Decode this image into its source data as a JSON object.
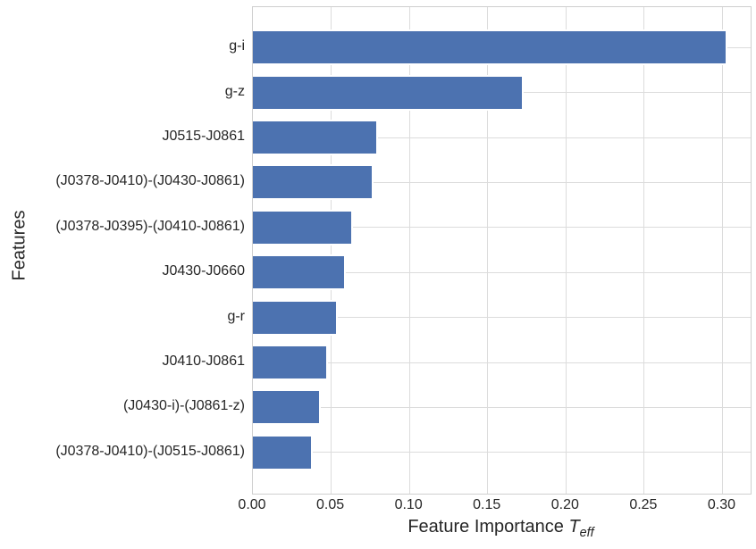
{
  "chart_data": {
    "type": "bar",
    "orientation": "horizontal",
    "title": "",
    "xlabel_parts": {
      "prefix": "Feature Importance ",
      "symbol": "T",
      "subscript": "eff"
    },
    "ylabel": "Features",
    "categories": [
      "g-i",
      "g-z",
      "J0515-J0861",
      "(J0378-J0410)-(J0430-J0861)",
      "(J0378-J0395)-(J0410-J0861)",
      "J0430-J0660",
      "g-r",
      "J0410-J0861",
      "(J0430-i)-(J0861-z)",
      "(J0378-J0410)-(J0515-J0861)"
    ],
    "values": [
      0.302,
      0.172,
      0.079,
      0.076,
      0.063,
      0.058,
      0.053,
      0.047,
      0.042,
      0.037
    ],
    "xticks": [
      0.0,
      0.05,
      0.1,
      0.15,
      0.2,
      0.25,
      0.3
    ],
    "xtick_labels": [
      "0.00",
      "0.05",
      "0.10",
      "0.15",
      "0.20",
      "0.25",
      "0.30"
    ],
    "xlim": [
      0,
      0.318
    ],
    "grid": true,
    "legend": false,
    "bar_color": "#4C72B0",
    "bar_edge_color": "#ffffff",
    "grid_color": "#dcdcdc",
    "spine_color": "#cfcfcf",
    "text_color": "#262626",
    "background": "#ffffff"
  }
}
